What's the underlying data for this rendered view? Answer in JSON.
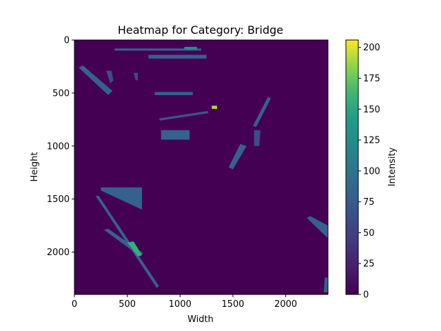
{
  "chart_data": {
    "type": "heatmap",
    "title": "Heatmap for Category: Bridge",
    "xlabel": "Width",
    "ylabel": "Height",
    "colorbar_label": "Intensity",
    "xlim": [
      0,
      2400
    ],
    "ylim": [
      2400,
      0
    ],
    "x_ticks": [
      0,
      500,
      1000,
      1500,
      2000
    ],
    "y_ticks": [
      0,
      500,
      1000,
      1500,
      2000
    ],
    "colorbar_range": [
      0,
      206
    ],
    "colorbar_ticks": [
      0,
      25,
      50,
      75,
      100,
      125,
      150,
      175,
      200
    ],
    "colormap": "viridis",
    "background_intensity": 0,
    "features": [
      {
        "shape": "bar",
        "x": 380,
        "y": 80,
        "x2": 1200,
        "y2": 100,
        "intensity": 80
      },
      {
        "shape": "bar",
        "x": 1040,
        "y": 65,
        "x2": 1160,
        "y2": 90,
        "intensity": 130
      },
      {
        "shape": "bar",
        "x": 700,
        "y": 140,
        "x2": 1250,
        "y2": 175,
        "intensity": 80
      },
      {
        "shape": "polygon",
        "points": [
          [
            40,
            260
          ],
          [
            80,
            240
          ],
          [
            360,
            480
          ],
          [
            320,
            520
          ]
        ],
        "intensity": 80
      },
      {
        "shape": "polygon",
        "points": [
          [
            300,
            290
          ],
          [
            350,
            290
          ],
          [
            370,
            380
          ],
          [
            340,
            410
          ]
        ],
        "intensity": 60
      },
      {
        "shape": "polygon",
        "points": [
          [
            560,
            310
          ],
          [
            600,
            310
          ],
          [
            600,
            380
          ],
          [
            580,
            380
          ]
        ],
        "intensity": 60
      },
      {
        "shape": "bar",
        "x": 760,
        "y": 490,
        "x2": 1120,
        "y2": 520,
        "intensity": 80
      },
      {
        "shape": "polygon",
        "points": [
          [
            1830,
            540
          ],
          [
            1860,
            550
          ],
          [
            1720,
            820
          ],
          [
            1690,
            810
          ]
        ],
        "intensity": 80
      },
      {
        "shape": "polygon",
        "points": [
          [
            800,
            740
          ],
          [
            1260,
            670
          ],
          [
            1270,
            690
          ],
          [
            810,
            760
          ]
        ],
        "intensity": 70
      },
      {
        "shape": "bar",
        "x": 820,
        "y": 850,
        "x2": 1090,
        "y2": 940,
        "intensity": 80
      },
      {
        "shape": "polygon",
        "points": [
          [
            1700,
            850
          ],
          [
            1760,
            850
          ],
          [
            1750,
            1000
          ],
          [
            1700,
            1000
          ]
        ],
        "intensity": 60
      },
      {
        "shape": "polygon",
        "points": [
          [
            1570,
            980
          ],
          [
            1630,
            1000
          ],
          [
            1500,
            1220
          ],
          [
            1460,
            1200
          ]
        ],
        "intensity": 80
      },
      {
        "shape": "polygon",
        "points": [
          [
            250,
            1390
          ],
          [
            640,
            1390
          ],
          [
            640,
            1600
          ],
          [
            250,
            1420
          ]
        ],
        "intensity": 80
      },
      {
        "shape": "polygon",
        "points": [
          [
            200,
            1470
          ],
          [
            230,
            1470
          ],
          [
            800,
            2320
          ],
          [
            780,
            2340
          ]
        ],
        "intensity": 80
      },
      {
        "shape": "polygon",
        "points": [
          [
            280,
            1790
          ],
          [
            320,
            1780
          ],
          [
            650,
            2010
          ],
          [
            620,
            2040
          ]
        ],
        "intensity": 80
      },
      {
        "shape": "polygon",
        "points": [
          [
            500,
            1910
          ],
          [
            560,
            1900
          ],
          [
            640,
            2030
          ],
          [
            600,
            2040
          ]
        ],
        "intensity": 160
      },
      {
        "shape": "polygon",
        "points": [
          [
            2200,
            1680
          ],
          [
            2230,
            1660
          ],
          [
            2400,
            1750
          ],
          [
            2400,
            1870
          ]
        ],
        "intensity": 80
      },
      {
        "shape": "polygon",
        "points": [
          [
            2370,
            2240
          ],
          [
            2400,
            2240
          ],
          [
            2400,
            2380
          ],
          [
            2360,
            2380
          ]
        ],
        "intensity": 80
      },
      {
        "shape": "bar",
        "x": 1300,
        "y": 620,
        "x2": 1350,
        "y2": 650,
        "intensity": 190
      }
    ]
  }
}
